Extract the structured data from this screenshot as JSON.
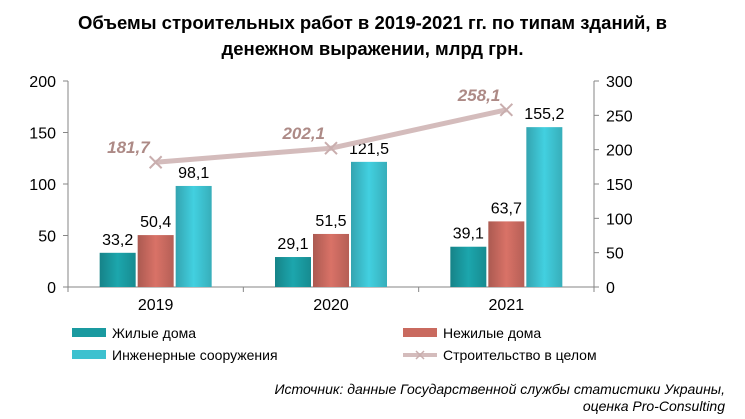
{
  "chart_data": {
    "type": "bar",
    "title_line1": "Объемы строительных работ в 2019-2021 гг. по типам зданий, в",
    "title_line2": "денежном выражении, млрд грн.",
    "categories": [
      "2019",
      "2020",
      "2021"
    ],
    "series": [
      {
        "name": "Жилые дома",
        "values": [
          33.2,
          29.1,
          39.1
        ],
        "labels": [
          "33,2",
          "29,1",
          "39,1"
        ],
        "color": "#1a9aa0",
        "axis": "left"
      },
      {
        "name": "Нежилые дома",
        "values": [
          50.4,
          51.5,
          63.7
        ],
        "labels": [
          "50,4",
          "51,5",
          "63,7"
        ],
        "color": "#c96a5f",
        "axis": "left"
      },
      {
        "name": "Инженерные сооружения",
        "values": [
          98.1,
          121.5,
          155.2
        ],
        "labels": [
          "98,1",
          "121,5",
          "155,2"
        ],
        "color": "#3dc1cf",
        "axis": "left"
      }
    ],
    "line_series": {
      "name": "Строительство в целом",
      "values": [
        181.7,
        202.1,
        258.1
      ],
      "labels": [
        "181,7",
        "202,1",
        "258,1"
      ],
      "color": "#d4bcbc",
      "label_color": "#ad8a86",
      "axis": "right"
    },
    "y_left": {
      "min": 0,
      "max": 200,
      "ticks": [
        "0",
        "50",
        "100",
        "150",
        "200"
      ]
    },
    "y_right": {
      "min": 0,
      "max": 300,
      "ticks": [
        "0",
        "50",
        "100",
        "150",
        "200",
        "250",
        "300"
      ]
    },
    "grid": false,
    "legend_position": "bottom",
    "source_line1": "Источник: данные Государственной службы статистики Украины,",
    "source_line2": "оценка Pro-Consulting"
  }
}
